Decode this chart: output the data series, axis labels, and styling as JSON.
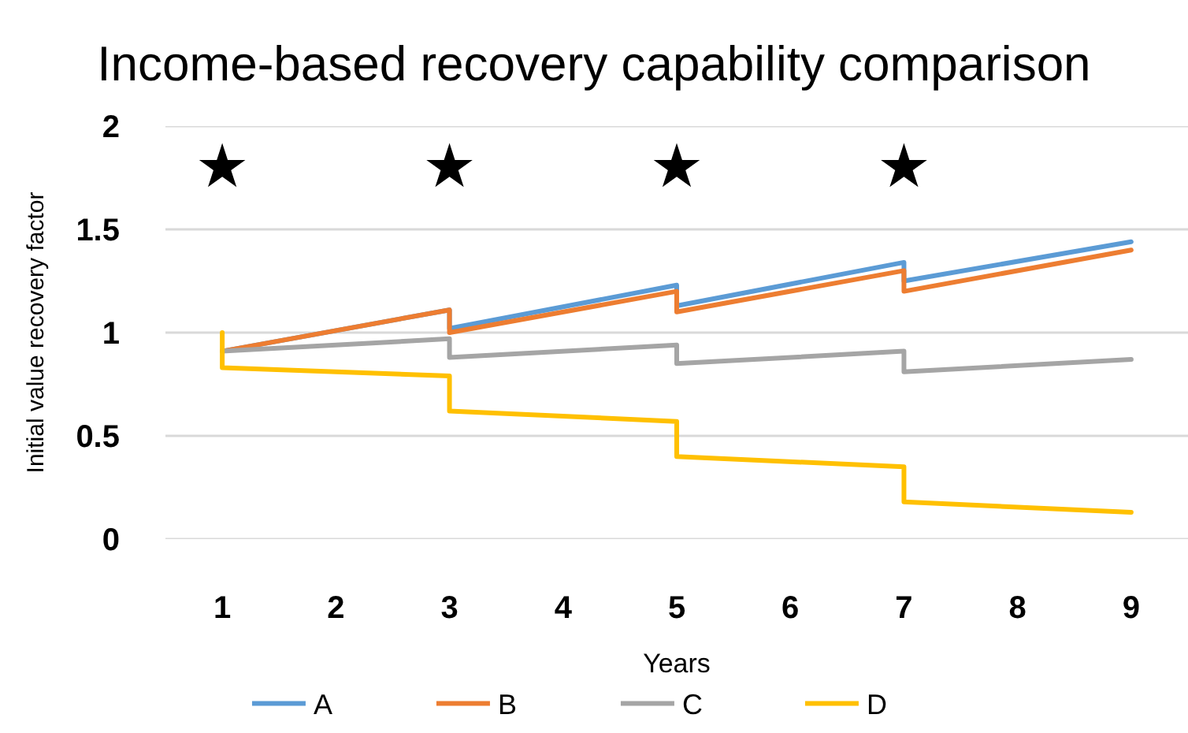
{
  "chart_data": {
    "type": "line",
    "title": "Income-based recovery capability comparison",
    "xlabel": "Years",
    "ylabel": "Initial value recovery factor",
    "xlim": [
      0.5,
      9.5
    ],
    "xticks": [
      1,
      2,
      3,
      4,
      5,
      6,
      7,
      8,
      9
    ],
    "ylim": [
      0,
      2
    ],
    "yticks": [
      0,
      0.5,
      1,
      1.5,
      2
    ],
    "grid": "y",
    "legend": "bottom",
    "marker": "none",
    "line_style": "solid",
    "series": [
      {
        "name": "A",
        "color": "#5b9bd5",
        "x": [
          1,
          3,
          3,
          5,
          5,
          7,
          7,
          9
        ],
        "values": [
          0.91,
          1.11,
          1.02,
          1.23,
          1.13,
          1.34,
          1.25,
          1.44
        ]
      },
      {
        "name": "B",
        "color": "#ed7d31",
        "x": [
          1,
          3,
          3,
          5,
          5,
          7,
          7,
          9
        ],
        "values": [
          0.91,
          1.11,
          1.0,
          1.2,
          1.1,
          1.3,
          1.2,
          1.4
        ]
      },
      {
        "name": "C",
        "color": "#a5a5a5",
        "x": [
          1,
          3,
          3,
          5,
          5,
          7,
          7,
          9
        ],
        "values": [
          0.91,
          0.97,
          0.88,
          0.94,
          0.85,
          0.91,
          0.81,
          0.87
        ]
      },
      {
        "name": "D",
        "color": "#ffc000",
        "x": [
          1,
          1,
          3,
          3,
          5,
          5,
          7,
          7,
          9
        ],
        "values": [
          1.0,
          0.83,
          0.79,
          0.62,
          0.57,
          0.4,
          0.35,
          0.18,
          0.13
        ]
      },
      {
        "type": "scatter",
        "marker": "star",
        "color": "#000000",
        "x": [
          1,
          3,
          5,
          7
        ],
        "values": [
          1.8,
          1.8,
          1.8,
          1.8
        ]
      }
    ]
  }
}
